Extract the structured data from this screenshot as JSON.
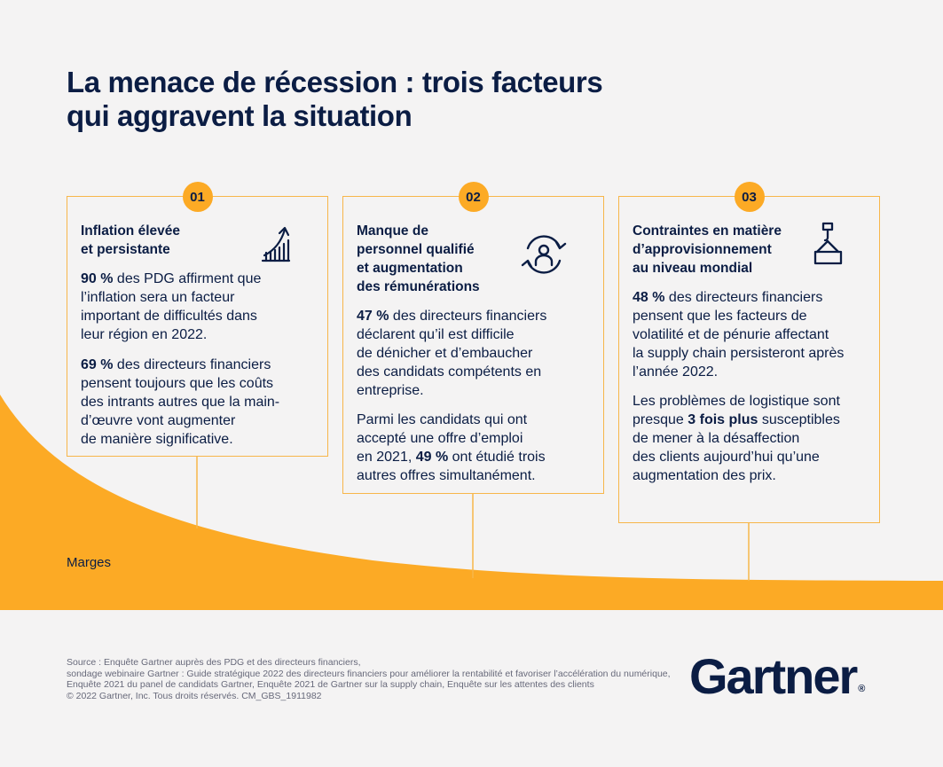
{
  "title": {
    "line1": "La menace de récession : trois facteurs",
    "line2": "qui aggravent la situation"
  },
  "colors": {
    "navy": "#0b1d44",
    "orange": "#fcaa25",
    "border": "#f7b64a",
    "background": "#f4f3f3"
  },
  "margin_label": "Marges",
  "cards": [
    {
      "number": "01",
      "icon": "growth-chart-icon",
      "title_lines": [
        "Inflation élevée",
        "et persistante"
      ],
      "p1": {
        "bold": "90 %",
        "rest": " des PDG affirment que",
        "lines": [
          "l’inflation sera un facteur",
          "important de difficultés dans",
          "leur région en 2022."
        ]
      },
      "p2": {
        "bold": "69 %",
        "rest": " des directeurs financiers",
        "lines": [
          "pensent toujours que les coûts",
          "des intrants autres que la main-",
          "d’œuvre vont augmenter",
          "de manière significative."
        ]
      }
    },
    {
      "number": "02",
      "icon": "person-cycle-icon",
      "title_lines": [
        "Manque de",
        "personnel qualifié",
        "et augmentation",
        "des rémunérations"
      ],
      "p1": {
        "bold": "47 %",
        "rest": " des directeurs financiers",
        "lines": [
          "déclarent qu’il est difficile",
          "de dénicher et d’embaucher",
          "des candidats compétents en",
          "entreprise."
        ]
      },
      "p2": {
        "pre_lines": [
          "Parmi les candidats qui ont",
          "accepté une offre d’emploi"
        ],
        "pre_inline": "en 2021, ",
        "bold": "49 %",
        "rest": " ont étudié trois",
        "lines": [
          "autres offres simultanément."
        ]
      }
    },
    {
      "number": "03",
      "icon": "crane-icon",
      "title_lines": [
        "Contraintes en matière",
        "d’approvisionnement",
        "au niveau mondial"
      ],
      "p1": {
        "bold": "48 %",
        "rest": " des directeurs financiers",
        "lines": [
          "pensent que les facteurs de",
          "volatilité et de pénurie affectant",
          "la supply chain persisteront après",
          "l’année 2022."
        ]
      },
      "p2": {
        "pre_lines": [
          "Les problèmes de logistique sont"
        ],
        "pre_inline": "presque ",
        "bold": "3 fois plus",
        "rest": " susceptibles",
        "lines": [
          "de mener à la désaffection",
          "des clients aujourd’hui qu’une",
          "augmentation des prix."
        ]
      }
    }
  ],
  "source": [
    "Source : Enquête Gartner auprès des PDG et des directeurs financiers,",
    "sondage webinaire Gartner : Guide stratégique 2022 des directeurs financiers pour améliorer la rentabilité et favoriser l’accélération du numérique,",
    "Enquête 2021 du panel de candidats Gartner, Enquête 2021 de Gartner sur la supply chain, Enquête sur les attentes des clients",
    "© 2022 Gartner, Inc. Tous droits réservés. CM_GBS_1911982"
  ],
  "logo": {
    "text": "Gartner",
    "mark": "®"
  }
}
